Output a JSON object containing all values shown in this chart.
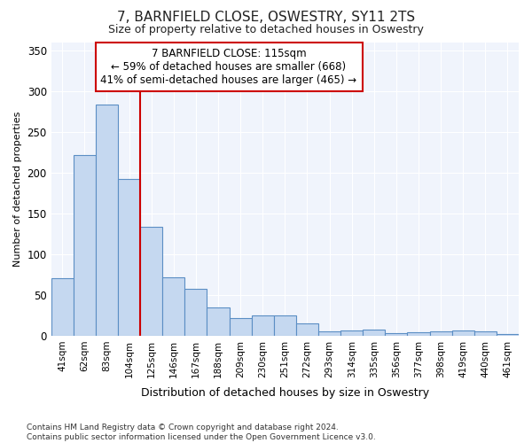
{
  "title": "7, BARNFIELD CLOSE, OSWESTRY, SY11 2TS",
  "subtitle": "Size of property relative to detached houses in Oswestry",
  "xlabel_bottom": "Distribution of detached houses by size in Oswestry",
  "ylabel": "Number of detached properties",
  "footer_line1": "Contains HM Land Registry data © Crown copyright and database right 2024.",
  "footer_line2": "Contains public sector information licensed under the Open Government Licence v3.0.",
  "categories": [
    "41sqm",
    "62sqm",
    "83sqm",
    "104sqm",
    "125sqm",
    "146sqm",
    "167sqm",
    "188sqm",
    "209sqm",
    "230sqm",
    "251sqm",
    "272sqm",
    "293sqm",
    "314sqm",
    "335sqm",
    "356sqm",
    "377sqm",
    "398sqm",
    "419sqm",
    "440sqm",
    "461sqm"
  ],
  "values": [
    70,
    222,
    283,
    192,
    133,
    72,
    58,
    35,
    22,
    25,
    25,
    15,
    5,
    6,
    7,
    3,
    4,
    5,
    6,
    5,
    2
  ],
  "bar_color": "#c5d8f0",
  "bar_edge_color": "#5b8ec4",
  "background_color": "#ffffff",
  "plot_bg_color": "#f0f4fc",
  "grid_color": "#ffffff",
  "red_line_x": 3.5,
  "annotation_text": "7 BARNFIELD CLOSE: 115sqm\n← 59% of detached houses are smaller (668)\n41% of semi-detached houses are larger (465) →",
  "annotation_box_color": "#ffffff",
  "annotation_box_edge_color": "#cc0000",
  "ylim": [
    0,
    360
  ],
  "yticks": [
    0,
    50,
    100,
    150,
    200,
    250,
    300,
    350
  ]
}
